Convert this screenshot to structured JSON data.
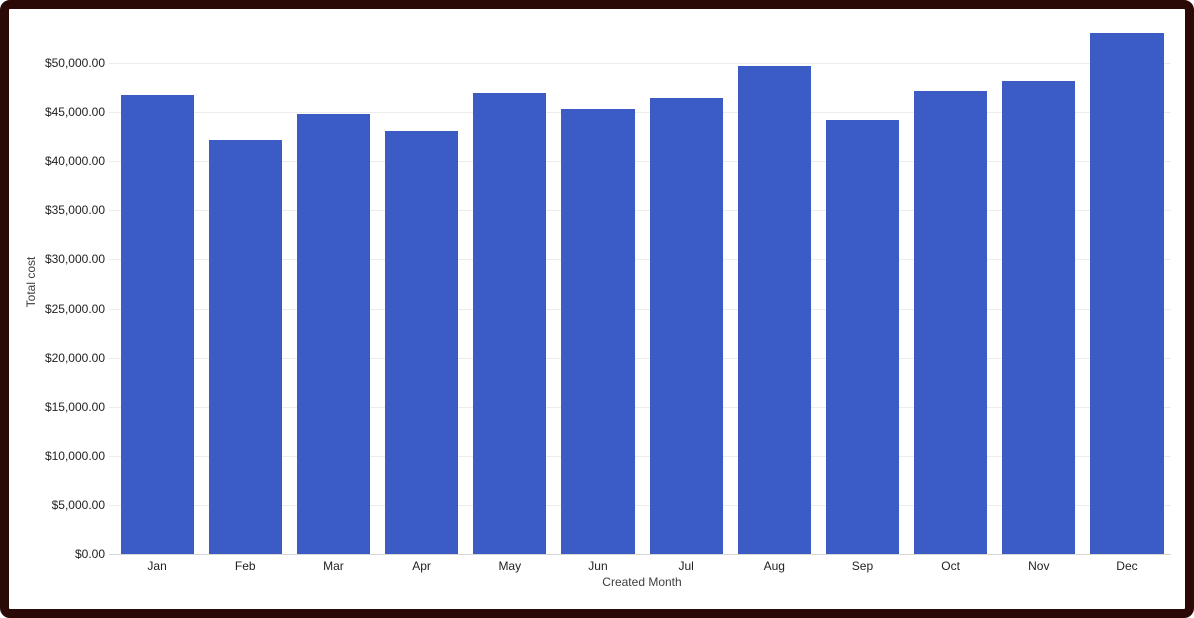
{
  "frame": {
    "border_color": "#2a0907",
    "background": "#ffffff"
  },
  "chart_data": {
    "type": "bar",
    "title": "",
    "xlabel": "Created Month",
    "ylabel": "Total cost",
    "categories": [
      "Jan",
      "Feb",
      "Mar",
      "Apr",
      "May",
      "Jun",
      "Jul",
      "Aug",
      "Sep",
      "Oct",
      "Nov",
      "Dec"
    ],
    "values": [
      46700,
      42200,
      44800,
      43100,
      46900,
      45300,
      46400,
      49700,
      44200,
      47200,
      48200,
      53100
    ],
    "series_name": "Total cost",
    "y_ticks": [
      {
        "label": "$0.00",
        "value": 0
      },
      {
        "label": "$5,000.00",
        "value": 5000
      },
      {
        "label": "$10,000.00",
        "value": 10000
      },
      {
        "label": "$15,000.00",
        "value": 15000
      },
      {
        "label": "$20,000.00",
        "value": 20000
      },
      {
        "label": "$25,000.00",
        "value": 25000
      },
      {
        "label": "$30,000.00",
        "value": 30000
      },
      {
        "label": "$35,000.00",
        "value": 35000
      },
      {
        "label": "$40,000.00",
        "value": 40000
      },
      {
        "label": "$45,000.00",
        "value": 45000
      },
      {
        "label": "$50,000.00",
        "value": 50000
      }
    ],
    "ylim": [
      0,
      55400
    ],
    "grid": true,
    "legend_position": "none",
    "bar_color": "#3a5cc4",
    "gridline_color": "#ececec",
    "baseline_color": "#d6d6d6",
    "axis_text_color": "#222222"
  }
}
